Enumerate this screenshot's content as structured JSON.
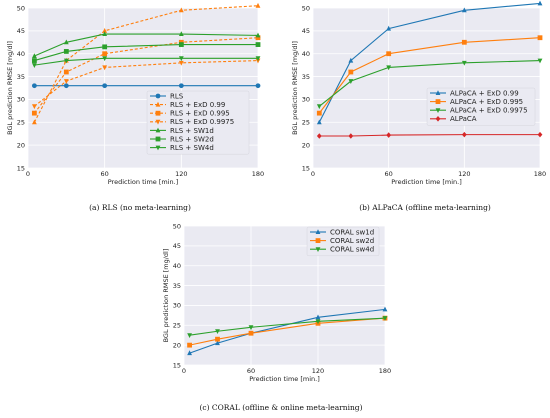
{
  "chart_data": [
    {
      "type": "line",
      "caption": "(a) RLS (no meta-learning)",
      "xlabel": "Prediction time [min.]",
      "ylabel": "BGL prediction RMSE [mg/dl]",
      "xlim": [
        0,
        180
      ],
      "ylim": [
        15,
        50
      ],
      "xticks": [
        0,
        60,
        120,
        180
      ],
      "yticks": [
        15,
        20,
        25,
        30,
        35,
        40,
        45,
        50
      ],
      "grid": true,
      "legend": "lower-right",
      "series": [
        {
          "name": "RLS",
          "color": "#1f77b4",
          "marker": "circle",
          "dash": false,
          "x": [
            5,
            30,
            60,
            120,
            180
          ],
          "y": [
            33.0,
            33.0,
            33.0,
            33.0,
            33.0
          ]
        },
        {
          "name": "RLS + ExD 0.99",
          "color": "#ff7f0e",
          "marker": "triangle-up",
          "dash": true,
          "x": [
            5,
            30,
            60,
            120,
            180
          ],
          "y": [
            25.0,
            38.5,
            45.0,
            49.5,
            50.5
          ]
        },
        {
          "name": "RLS + ExD 0.995",
          "color": "#ff7f0e",
          "marker": "square",
          "dash": true,
          "x": [
            5,
            30,
            60,
            120,
            180
          ],
          "y": [
            27.0,
            36.0,
            40.0,
            42.5,
            43.5
          ]
        },
        {
          "name": "RLS + ExD 0.9975",
          "color": "#ff7f0e",
          "marker": "triangle-down",
          "dash": true,
          "x": [
            5,
            30,
            60,
            120,
            180
          ],
          "y": [
            28.5,
            34.0,
            37.0,
            38.0,
            38.5
          ]
        },
        {
          "name": "RLS + SW1d",
          "color": "#2ca02c",
          "marker": "triangle-up",
          "dash": false,
          "x": [
            5,
            30,
            60,
            120,
            180
          ],
          "y": [
            39.5,
            42.5,
            44.3,
            44.3,
            44.0
          ]
        },
        {
          "name": "RLS + SW2d",
          "color": "#2ca02c",
          "marker": "square",
          "dash": false,
          "x": [
            5,
            30,
            60,
            120,
            180
          ],
          "y": [
            38.5,
            40.5,
            41.5,
            42.0,
            42.0
          ]
        },
        {
          "name": "RLS + SW4d",
          "color": "#2ca02c",
          "marker": "triangle-down",
          "dash": false,
          "x": [
            5,
            30,
            60,
            120,
            180
          ],
          "y": [
            37.5,
            38.5,
            39.0,
            39.0,
            39.0
          ]
        }
      ]
    },
    {
      "type": "line",
      "caption": "(b) ALPaCA (offline meta-learning)",
      "xlabel": "Prediction time [min.]",
      "ylabel": "BGL prediction RMSE [mg/dl]",
      "xlim": [
        0,
        180
      ],
      "ylim": [
        15,
        50
      ],
      "xticks": [
        0,
        60,
        120,
        180
      ],
      "yticks": [
        15,
        20,
        25,
        30,
        35,
        40,
        45,
        50
      ],
      "grid": true,
      "legend": "center-right",
      "series": [
        {
          "name": "ALPaCA + ExD 0.99",
          "color": "#1f77b4",
          "marker": "triangle-up",
          "dash": false,
          "x": [
            5,
            30,
            60,
            120,
            180
          ],
          "y": [
            25.0,
            38.5,
            45.5,
            49.5,
            51.0
          ]
        },
        {
          "name": "ALPaCA + ExD 0.995",
          "color": "#ff7f0e",
          "marker": "square",
          "dash": false,
          "x": [
            5,
            30,
            60,
            120,
            180
          ],
          "y": [
            27.0,
            36.0,
            40.0,
            42.5,
            43.5
          ]
        },
        {
          "name": "ALPaCA + ExD 0.9975",
          "color": "#2ca02c",
          "marker": "triangle-down",
          "dash": false,
          "x": [
            5,
            30,
            60,
            120,
            180
          ],
          "y": [
            28.5,
            34.0,
            37.0,
            38.0,
            38.5
          ]
        },
        {
          "name": "ALPaCA",
          "color": "#d62728",
          "marker": "diamond",
          "dash": false,
          "x": [
            5,
            30,
            60,
            120,
            180
          ],
          "y": [
            22.0,
            22.0,
            22.2,
            22.3,
            22.3
          ]
        }
      ]
    },
    {
      "type": "line",
      "caption": "(c) CORAL (offline & online meta-learning)",
      "xlabel": "Prediction time [min.]",
      "ylabel": "BGL prediction RMSE [mg/dl]",
      "xlim": [
        0,
        180
      ],
      "ylim": [
        15,
        50
      ],
      "xticks": [
        0,
        60,
        120,
        180
      ],
      "yticks": [
        15,
        20,
        25,
        30,
        35,
        40,
        45,
        50
      ],
      "grid": true,
      "legend": "top-right",
      "series": [
        {
          "name": "CORAL sw1d",
          "color": "#1f77b4",
          "marker": "triangle-up",
          "dash": false,
          "x": [
            5,
            30,
            60,
            120,
            180
          ],
          "y": [
            18.0,
            20.5,
            23.0,
            27.0,
            29.0
          ]
        },
        {
          "name": "CORAL sw2d",
          "color": "#ff7f0e",
          "marker": "square",
          "dash": false,
          "x": [
            5,
            30,
            60,
            120,
            180
          ],
          "y": [
            20.0,
            21.5,
            23.0,
            25.5,
            26.8
          ]
        },
        {
          "name": "CORAL sw4d",
          "color": "#2ca02c",
          "marker": "triangle-down",
          "dash": false,
          "x": [
            5,
            30,
            60,
            120,
            180
          ],
          "y": [
            22.5,
            23.5,
            24.5,
            26.0,
            26.8
          ]
        }
      ]
    }
  ]
}
